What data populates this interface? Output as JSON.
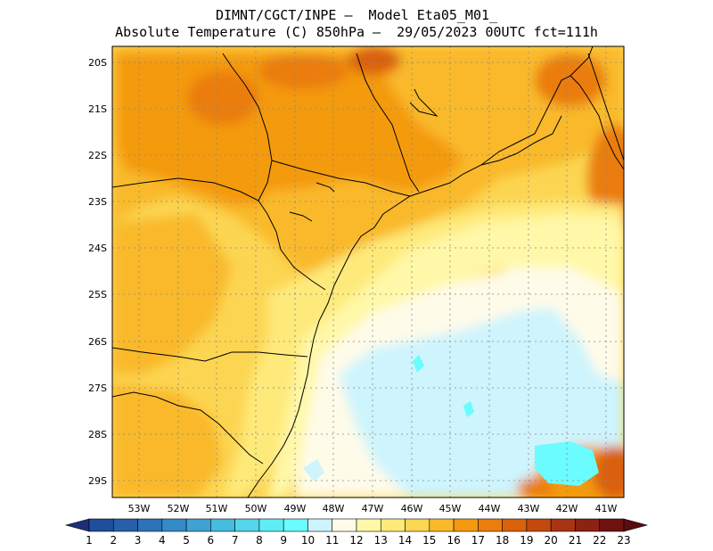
{
  "title": {
    "line1": "DIMNT/CGCT/INPE —  Model Eta05_M01_",
    "line2": "Absolute Temperature (C) 850hPa —  29/05/2023 00UTC fct=111h"
  },
  "axes": {
    "lat_labels": [
      "20S",
      "21S",
      "22S",
      "23S",
      "24S",
      "25S",
      "26S",
      "27S",
      "28S",
      "29S"
    ],
    "lon_labels": [
      "53W",
      "52W",
      "51W",
      "50W",
      "49W",
      "48W",
      "47W",
      "46W",
      "45W",
      "44W",
      "43W",
      "42W",
      "41W"
    ]
  },
  "colorbar": {
    "labels": [
      "1",
      "2",
      "3",
      "4",
      "5",
      "6",
      "7",
      "8",
      "9",
      "10",
      "11",
      "12",
      "13",
      "14",
      "15",
      "16",
      "17",
      "18",
      "19",
      "20",
      "21",
      "22",
      "23"
    ],
    "colors": [
      "#1e3c8c",
      "#1f4e9b",
      "#2660aa",
      "#2d73b8",
      "#348bc7",
      "#3ea2d3",
      "#46bcdf",
      "#54d5ea",
      "#5fedf5",
      "#6afcfe",
      "#cef4fd",
      "#fffbe9",
      "#fff8a8",
      "#feea7a",
      "#fcd552",
      "#f9b92a",
      "#f49a0e",
      "#ea7d0c",
      "#da610c",
      "#c24a10",
      "#a83412",
      "#8c2212",
      "#6e1210"
    ],
    "under_color": "#1c2f7a",
    "over_color": "#5a0c10"
  }
}
